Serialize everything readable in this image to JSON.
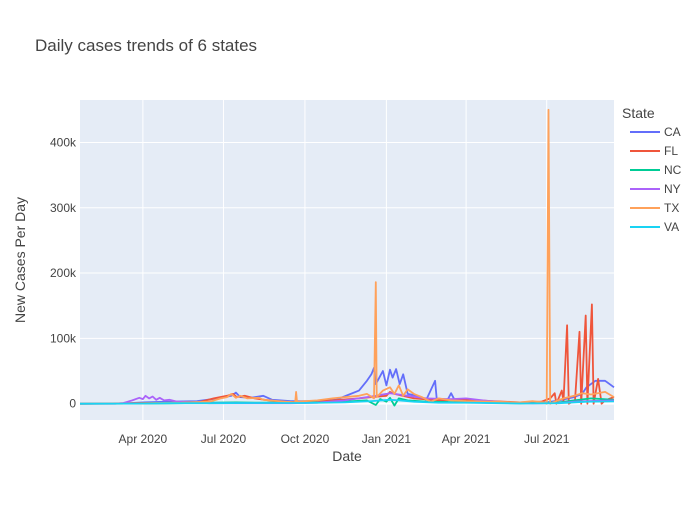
{
  "chart_data": {
    "type": "line",
    "title": "Daily cases trends of 6 states",
    "xlabel": "Date",
    "ylabel": "New Cases Per Day",
    "legend": {
      "title": "State",
      "position": "right"
    },
    "grid": true,
    "x_range": [
      "2020-01-21",
      "2021-09-15"
    ],
    "y_range": [
      -25000,
      465000
    ],
    "x_ticks": [
      {
        "date": "2020-04-01",
        "label": "Apr 2020"
      },
      {
        "date": "2020-07-01",
        "label": "Jul 2020"
      },
      {
        "date": "2020-10-01",
        "label": "Oct 2020"
      },
      {
        "date": "2021-01-01",
        "label": "Jan 2021"
      },
      {
        "date": "2021-04-01",
        "label": "Apr 2021"
      },
      {
        "date": "2021-07-01",
        "label": "Jul 2021"
      }
    ],
    "y_ticks": [
      {
        "value": 0,
        "label": "0"
      },
      {
        "value": 100000,
        "label": "100k"
      },
      {
        "value": 200000,
        "label": "200k"
      },
      {
        "value": 300000,
        "label": "300k"
      },
      {
        "value": 400000,
        "label": "400k"
      }
    ],
    "series": [
      {
        "name": "CA",
        "color": "#636efa",
        "points": [
          [
            "2020-01-21",
            0
          ],
          [
            "2020-03-10",
            200
          ],
          [
            "2020-04-01",
            2000
          ],
          [
            "2020-05-01",
            3000
          ],
          [
            "2020-06-01",
            4000
          ],
          [
            "2020-06-25",
            8000
          ],
          [
            "2020-07-10",
            12000
          ],
          [
            "2020-07-15",
            17000
          ],
          [
            "2020-07-20",
            10000
          ],
          [
            "2020-08-01",
            9000
          ],
          [
            "2020-08-15",
            12000
          ],
          [
            "2020-08-25",
            6000
          ],
          [
            "2020-09-15",
            4000
          ],
          [
            "2020-10-15",
            4000
          ],
          [
            "2020-11-05",
            6000
          ],
          [
            "2020-11-20",
            14000
          ],
          [
            "2020-12-01",
            20000
          ],
          [
            "2020-12-10",
            35000
          ],
          [
            "2020-12-15",
            45000
          ],
          [
            "2020-12-18",
            55000
          ],
          [
            "2020-12-20",
            30000
          ],
          [
            "2020-12-28",
            50000
          ],
          [
            "2021-01-01",
            28000
          ],
          [
            "2021-01-05",
            52000
          ],
          [
            "2021-01-08",
            40000
          ],
          [
            "2021-01-12",
            53000
          ],
          [
            "2021-01-16",
            30000
          ],
          [
            "2021-01-20",
            45000
          ],
          [
            "2021-01-25",
            15000
          ],
          [
            "2021-02-05",
            12000
          ],
          [
            "2021-02-15",
            6000
          ],
          [
            "2021-02-25",
            35000
          ],
          [
            "2021-02-27",
            4000
          ],
          [
            "2021-03-10",
            3000
          ],
          [
            "2021-03-15",
            16000
          ],
          [
            "2021-03-20",
            3000
          ],
          [
            "2021-04-15",
            3000
          ],
          [
            "2021-05-15",
            2000
          ],
          [
            "2021-06-15",
            1000
          ],
          [
            "2021-07-01",
            2000
          ],
          [
            "2021-07-15",
            5000
          ],
          [
            "2021-08-01",
            10000
          ],
          [
            "2021-08-10",
            15000
          ],
          [
            "2021-08-15",
            25000
          ],
          [
            "2021-08-25",
            35000
          ],
          [
            "2021-09-05",
            35000
          ],
          [
            "2021-09-15",
            25000
          ]
        ]
      },
      {
        "name": "FL",
        "color": "#EF553B",
        "points": [
          [
            "2020-01-21",
            0
          ],
          [
            "2020-03-15",
            500
          ],
          [
            "2020-04-01",
            1000
          ],
          [
            "2020-06-01",
            1500
          ],
          [
            "2020-06-20",
            8000
          ],
          [
            "2020-07-05",
            12000
          ],
          [
            "2020-07-12",
            15000
          ],
          [
            "2020-07-16",
            10000
          ],
          [
            "2020-07-25",
            12000
          ],
          [
            "2020-08-05",
            8000
          ],
          [
            "2020-09-01",
            3000
          ],
          [
            "2020-10-01",
            2000
          ],
          [
            "2020-11-01",
            5000
          ],
          [
            "2020-12-01",
            8000
          ],
          [
            "2020-12-15",
            10000
          ],
          [
            "2021-01-01",
            12000
          ],
          [
            "2021-01-05",
            18000
          ],
          [
            "2021-01-10",
            15000
          ],
          [
            "2021-02-01",
            8000
          ],
          [
            "2021-03-01",
            5000
          ],
          [
            "2021-04-01",
            6000
          ],
          [
            "2021-05-01",
            4000
          ],
          [
            "2021-06-01",
            2000
          ],
          [
            "2021-06-25",
            3000
          ],
          [
            "2021-07-05",
            8000
          ],
          [
            "2021-07-10",
            16000
          ],
          [
            "2021-07-12",
            0
          ],
          [
            "2021-07-18",
            20000
          ],
          [
            "2021-07-20",
            4000
          ],
          [
            "2021-07-24",
            120000
          ],
          [
            "2021-07-26",
            0
          ],
          [
            "2021-08-02",
            5000
          ],
          [
            "2021-08-07",
            110000
          ],
          [
            "2021-08-09",
            0
          ],
          [
            "2021-08-14",
            135000
          ],
          [
            "2021-08-16",
            0
          ],
          [
            "2021-08-21",
            152000
          ],
          [
            "2021-08-23",
            0
          ],
          [
            "2021-08-28",
            38000
          ],
          [
            "2021-09-01",
            0
          ],
          [
            "2021-09-05",
            5000
          ],
          [
            "2021-09-15",
            10000
          ]
        ]
      },
      {
        "name": "NC",
        "color": "#00cc96",
        "points": [
          [
            "2020-01-21",
            0
          ],
          [
            "2020-03-20",
            100
          ],
          [
            "2020-05-01",
            500
          ],
          [
            "2020-06-15",
            1500
          ],
          [
            "2020-07-15",
            2000
          ],
          [
            "2020-08-15",
            1500
          ],
          [
            "2020-10-15",
            2000
          ],
          [
            "2020-11-15",
            3000
          ],
          [
            "2020-12-10",
            5000
          ],
          [
            "2020-12-20",
            -2000
          ],
          [
            "2020-12-25",
            7000
          ],
          [
            "2021-01-01",
            3000
          ],
          [
            "2021-01-05",
            9000
          ],
          [
            "2021-01-10",
            -3000
          ],
          [
            "2021-01-15",
            8000
          ],
          [
            "2021-01-25",
            5000
          ],
          [
            "2021-02-15",
            3000
          ],
          [
            "2021-04-01",
            2000
          ],
          [
            "2021-06-01",
            500
          ],
          [
            "2021-07-15",
            2000
          ],
          [
            "2021-08-01",
            5000
          ],
          [
            "2021-08-20",
            8000
          ],
          [
            "2021-09-15",
            6000
          ]
        ]
      },
      {
        "name": "NY",
        "color": "#ab63fa",
        "points": [
          [
            "2020-01-21",
            0
          ],
          [
            "2020-03-01",
            0
          ],
          [
            "2020-03-10",
            1000
          ],
          [
            "2020-03-20",
            5000
          ],
          [
            "2020-03-28",
            9000
          ],
          [
            "2020-04-01",
            7000
          ],
          [
            "2020-04-04",
            12000
          ],
          [
            "2020-04-08",
            8000
          ],
          [
            "2020-04-12",
            11000
          ],
          [
            "2020-04-16",
            6000
          ],
          [
            "2020-04-20",
            9000
          ],
          [
            "2020-04-25",
            5000
          ],
          [
            "2020-05-01",
            6000
          ],
          [
            "2020-05-10",
            3000
          ],
          [
            "2020-05-25",
            2000
          ],
          [
            "2020-06-15",
            800
          ],
          [
            "2020-07-15",
            700
          ],
          [
            "2020-08-15",
            700
          ],
          [
            "2020-09-15",
            800
          ],
          [
            "2020-10-15",
            1500
          ],
          [
            "2020-11-15",
            5000
          ],
          [
            "2020-12-10",
            10000
          ],
          [
            "2020-12-20",
            12000
          ],
          [
            "2021-01-05",
            16000
          ],
          [
            "2021-01-15",
            14000
          ],
          [
            "2021-01-25",
            12000
          ],
          [
            "2021-02-15",
            8000
          ],
          [
            "2021-03-15",
            7000
          ],
          [
            "2021-04-01",
            8000
          ],
          [
            "2021-04-20",
            5000
          ],
          [
            "2021-05-15",
            2000
          ],
          [
            "2021-06-15",
            500
          ],
          [
            "2021-07-15",
            1000
          ],
          [
            "2021-08-01",
            3000
          ],
          [
            "2021-08-15",
            4000
          ],
          [
            "2021-09-15",
            5000
          ]
        ]
      },
      {
        "name": "TX",
        "color": "#FFA15A",
        "points": [
          [
            "2020-01-21",
            0
          ],
          [
            "2020-03-15",
            100
          ],
          [
            "2020-04-15",
            1000
          ],
          [
            "2020-05-15",
            1500
          ],
          [
            "2020-06-15",
            3000
          ],
          [
            "2020-06-28",
            8000
          ],
          [
            "2020-07-05",
            10000
          ],
          [
            "2020-07-10",
            15000
          ],
          [
            "2020-07-15",
            9000
          ],
          [
            "2020-07-20",
            12000
          ],
          [
            "2020-07-28",
            8000
          ],
          [
            "2020-08-10",
            9000
          ],
          [
            "2020-08-15",
            6000
          ],
          [
            "2020-09-01",
            4000
          ],
          [
            "2020-09-20",
            2000
          ],
          [
            "2020-09-21",
            18000
          ],
          [
            "2020-09-22",
            3000
          ],
          [
            "2020-10-15",
            5000
          ],
          [
            "2020-11-01",
            8000
          ],
          [
            "2020-11-15",
            10000
          ],
          [
            "2020-12-01",
            12000
          ],
          [
            "2020-12-10",
            15000
          ],
          [
            "2020-12-18",
            8000
          ],
          [
            "2020-12-20",
            186000
          ],
          [
            "2020-12-21",
            10000
          ],
          [
            "2020-12-28",
            20000
          ],
          [
            "2021-01-05",
            25000
          ],
          [
            "2021-01-10",
            15000
          ],
          [
            "2021-01-15",
            28000
          ],
          [
            "2021-01-20",
            12000
          ],
          [
            "2021-01-25",
            22000
          ],
          [
            "2021-02-01",
            15000
          ],
          [
            "2021-02-10",
            10000
          ],
          [
            "2021-02-20",
            3000
          ],
          [
            "2021-03-01",
            8000
          ],
          [
            "2021-03-15",
            5000
          ],
          [
            "2021-04-01",
            4000
          ],
          [
            "2021-05-01",
            3000
          ],
          [
            "2021-06-01",
            2000
          ],
          [
            "2021-06-15",
            4000
          ],
          [
            "2021-06-28",
            2000
          ],
          [
            "2021-07-01",
            0
          ],
          [
            "2021-07-03",
            450000
          ],
          [
            "2021-07-05",
            0
          ],
          [
            "2021-07-10",
            3000
          ],
          [
            "2021-07-20",
            8000
          ],
          [
            "2021-08-01",
            12000
          ],
          [
            "2021-08-10",
            16000
          ],
          [
            "2021-08-20",
            14000
          ],
          [
            "2021-09-05",
            18000
          ],
          [
            "2021-09-15",
            10000
          ]
        ]
      },
      {
        "name": "VA",
        "color": "#19d3f3",
        "points": [
          [
            "2020-01-21",
            0
          ],
          [
            "2020-03-20",
            100
          ],
          [
            "2020-05-01",
            800
          ],
          [
            "2020-06-15",
            700
          ],
          [
            "2020-08-01",
            1000
          ],
          [
            "2020-10-01",
            1000
          ],
          [
            "2020-11-15",
            2000
          ],
          [
            "2020-12-15",
            4000
          ],
          [
            "2021-01-05",
            6000
          ],
          [
            "2021-01-15",
            5000
          ],
          [
            "2021-02-01",
            3000
          ],
          [
            "2021-03-01",
            1500
          ],
          [
            "2021-04-01",
            1500
          ],
          [
            "2021-06-01",
            200
          ],
          [
            "2021-07-15",
            800
          ],
          [
            "2021-08-15",
            3000
          ],
          [
            "2021-09-15",
            3500
          ]
        ]
      }
    ]
  }
}
